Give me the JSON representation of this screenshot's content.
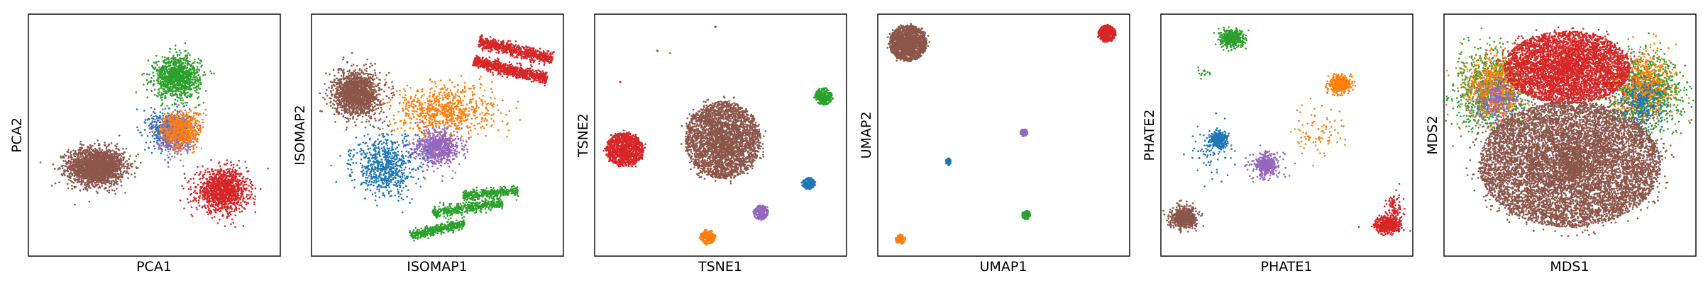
{
  "figure": {
    "background": "#ffffff",
    "palette": {
      "blue": "#1f77b4",
      "orange": "#ff7f0e",
      "green": "#2ca02c",
      "red": "#d62728",
      "purple": "#9467bd",
      "brown": "#8c564b"
    }
  },
  "chart_data": [
    {
      "type": "scatter",
      "title": "",
      "xlabel": "PCA1",
      "ylabel": "PCA2",
      "ticks": false,
      "grid": false,
      "legend": false,
      "xlim": [
        0,
        100
      ],
      "ylim": [
        0,
        100
      ],
      "series": [
        {
          "color": "#8c564b",
          "cx": 27,
          "cy": 37,
          "rx": 11,
          "ry": 7.5,
          "n": 2200,
          "kind": "blob"
        },
        {
          "color": "#d62728",
          "cx": 77,
          "cy": 27,
          "rx": 10,
          "ry": 8.5,
          "n": 1300,
          "kind": "blob"
        },
        {
          "color": "#2ca02c",
          "cx": 59,
          "cy": 74,
          "rx": 9,
          "ry": 8.5,
          "n": 1100,
          "kind": "blob"
        },
        {
          "color": "#1f77b4",
          "cx": 56,
          "cy": 52,
          "rx": 8,
          "ry": 8,
          "n": 500,
          "kind": "blob"
        },
        {
          "color": "#9467bd",
          "cx": 58,
          "cy": 51,
          "rx": 7,
          "ry": 8,
          "n": 500,
          "kind": "blob"
        },
        {
          "color": "#ff7f0e",
          "cx": 61,
          "cy": 52,
          "rx": 8,
          "ry": 8,
          "n": 500,
          "kind": "blob"
        }
      ]
    },
    {
      "type": "scatter",
      "title": "",
      "xlabel": "ISOMAP1",
      "ylabel": "ISOMAP2",
      "ticks": false,
      "grid": false,
      "legend": false,
      "xlim": [
        0,
        100
      ],
      "ylim": [
        0,
        100
      ],
      "series": [
        {
          "color": "#8c564b",
          "cx": 18,
          "cy": 67,
          "rx": 9,
          "ry": 9,
          "n": 1600,
          "kind": "blob"
        },
        {
          "color": "#d62728",
          "cx": 81,
          "cy": 85,
          "rx": 15,
          "ry": 3.5,
          "n": 800,
          "kind": "band",
          "angle": -14
        },
        {
          "color": "#d62728",
          "cx": 79,
          "cy": 77,
          "rx": 15,
          "ry": 3.5,
          "n": 800,
          "kind": "band",
          "angle": -14
        },
        {
          "color": "#ff7f0e",
          "cx": 53,
          "cy": 60,
          "rx": 18,
          "ry": 10,
          "n": 800,
          "kind": "diffuse"
        },
        {
          "color": "#9467bd",
          "cx": 50,
          "cy": 45,
          "rx": 9,
          "ry": 7,
          "n": 700,
          "kind": "blob"
        },
        {
          "color": "#1f77b4",
          "cx": 29,
          "cy": 37,
          "rx": 11,
          "ry": 11,
          "n": 700,
          "kind": "diffuse"
        },
        {
          "color": "#2ca02c",
          "cx": 62,
          "cy": 20,
          "rx": 14,
          "ry": 3.5,
          "n": 450,
          "kind": "band",
          "angle": 9
        },
        {
          "color": "#2ca02c",
          "cx": 50,
          "cy": 11,
          "rx": 11,
          "ry": 3,
          "n": 400,
          "kind": "band",
          "angle": 14
        },
        {
          "color": "#2ca02c",
          "cx": 71,
          "cy": 26,
          "rx": 11,
          "ry": 3,
          "n": 350,
          "kind": "band",
          "angle": 6
        }
      ]
    },
    {
      "type": "scatter",
      "title": "",
      "xlabel": "TSNE1",
      "ylabel": "TSNE2",
      "ticks": false,
      "grid": false,
      "legend": false,
      "xlim": [
        0,
        100
      ],
      "ylim": [
        0,
        100
      ],
      "series": [
        {
          "color": "#8c564b",
          "cx": 51,
          "cy": 48,
          "rx": 15,
          "ry": 16,
          "n": 3200,
          "kind": "disk"
        },
        {
          "color": "#d62728",
          "cx": 12,
          "cy": 44,
          "rx": 7.5,
          "ry": 7,
          "n": 1100,
          "kind": "disk"
        },
        {
          "color": "#2ca02c",
          "cx": 91,
          "cy": 66,
          "rx": 3.5,
          "ry": 3.5,
          "n": 300,
          "kind": "disk"
        },
        {
          "color": "#1f77b4",
          "cx": 85,
          "cy": 30,
          "rx": 2.5,
          "ry": 2.5,
          "n": 200,
          "kind": "disk"
        },
        {
          "color": "#9467bd",
          "cx": 66,
          "cy": 18,
          "rx": 3,
          "ry": 3,
          "n": 220,
          "kind": "disk"
        },
        {
          "color": "#ff7f0e",
          "cx": 45,
          "cy": 8,
          "rx": 3,
          "ry": 3,
          "n": 220,
          "kind": "disk"
        },
        {
          "color": "#8c564b",
          "cx": 48,
          "cy": 95,
          "rx": 0.4,
          "ry": 0.4,
          "n": 3,
          "kind": "disk"
        },
        {
          "color": "#ff7f0e",
          "cx": 30,
          "cy": 84,
          "rx": 0.3,
          "ry": 0.3,
          "n": 2,
          "kind": "disk"
        },
        {
          "color": "#8c564b",
          "cx": 25,
          "cy": 85,
          "rx": 0.3,
          "ry": 0.3,
          "n": 2,
          "kind": "disk"
        },
        {
          "color": "#d62728",
          "cx": 10,
          "cy": 72,
          "rx": 0.3,
          "ry": 0.3,
          "n": 2,
          "kind": "disk"
        }
      ]
    },
    {
      "type": "scatter",
      "title": "",
      "xlabel": "UMAP1",
      "ylabel": "UMAP2",
      "ticks": false,
      "grid": false,
      "legend": false,
      "xlim": [
        0,
        100
      ],
      "ylim": [
        0,
        100
      ],
      "series": [
        {
          "color": "#8c564b",
          "cx": 12,
          "cy": 88,
          "rx": 7.5,
          "ry": 7.5,
          "n": 1600,
          "kind": "disk"
        },
        {
          "color": "#d62728",
          "cx": 91,
          "cy": 92,
          "rx": 3.5,
          "ry": 3.5,
          "n": 500,
          "kind": "disk"
        },
        {
          "color": "#9467bd",
          "cx": 58,
          "cy": 51,
          "rx": 1.5,
          "ry": 1.5,
          "n": 80,
          "kind": "disk"
        },
        {
          "color": "#1f77b4",
          "cx": 28,
          "cy": 39,
          "rx": 1,
          "ry": 1.5,
          "n": 60,
          "kind": "disk"
        },
        {
          "color": "#2ca02c",
          "cx": 59,
          "cy": 17,
          "rx": 1.8,
          "ry": 1.8,
          "n": 120,
          "kind": "disk"
        },
        {
          "color": "#ff7f0e",
          "cx": 9,
          "cy": 7,
          "rx": 2,
          "ry": 2,
          "n": 120,
          "kind": "disk"
        }
      ]
    },
    {
      "type": "scatter",
      "title": "",
      "xlabel": "PHATE1",
      "ylabel": "PHATE2",
      "ticks": false,
      "grid": false,
      "legend": false,
      "xlim": [
        0,
        100
      ],
      "ylim": [
        0,
        100
      ],
      "series": [
        {
          "color": "#2ca02c",
          "cx": 28,
          "cy": 90,
          "rx": 4.5,
          "ry": 3.5,
          "n": 450,
          "kind": "blob"
        },
        {
          "color": "#2ca02c",
          "cx": 17,
          "cy": 76,
          "rx": 3,
          "ry": 3,
          "n": 15,
          "kind": "diffuse"
        },
        {
          "color": "#ff7f0e",
          "cx": 71,
          "cy": 71,
          "rx": 4,
          "ry": 3.5,
          "n": 450,
          "kind": "blob"
        },
        {
          "color": "#ff7f0e",
          "cx": 62,
          "cy": 52,
          "rx": 9,
          "ry": 10,
          "n": 90,
          "kind": "diffuse"
        },
        {
          "color": "#1f77b4",
          "cx": 23,
          "cy": 48,
          "rx": 3.5,
          "ry": 3.5,
          "n": 300,
          "kind": "blob"
        },
        {
          "color": "#1f77b4",
          "cx": 21,
          "cy": 44,
          "rx": 8,
          "ry": 10,
          "n": 90,
          "kind": "diffuse"
        },
        {
          "color": "#9467bd",
          "cx": 42,
          "cy": 38,
          "rx": 4,
          "ry": 4,
          "n": 350,
          "kind": "blob"
        },
        {
          "color": "#9467bd",
          "cx": 42,
          "cy": 37,
          "rx": 8,
          "ry": 7,
          "n": 90,
          "kind": "diffuse"
        },
        {
          "color": "#8c564b",
          "cx": 9,
          "cy": 16,
          "rx": 5,
          "ry": 4.5,
          "n": 600,
          "kind": "blob"
        },
        {
          "color": "#d62728",
          "cx": 90,
          "cy": 13,
          "rx": 5,
          "ry": 3.5,
          "n": 550,
          "kind": "blob"
        },
        {
          "color": "#d62728",
          "cx": 93,
          "cy": 20,
          "rx": 3,
          "ry": 6,
          "n": 90,
          "kind": "diffuse"
        }
      ]
    },
    {
      "type": "scatter",
      "title": "",
      "xlabel": "MDS1",
      "ylabel": "MDS2",
      "ticks": false,
      "grid": false,
      "legend": false,
      "xlim": [
        0,
        100
      ],
      "ylim": [
        0,
        100
      ],
      "series": [
        {
          "color": "#2ca02c",
          "cx": 19,
          "cy": 68,
          "rx": 13,
          "ry": 14,
          "n": 1000,
          "kind": "diffuse"
        },
        {
          "color": "#2ca02c",
          "cx": 80,
          "cy": 68,
          "rx": 13,
          "ry": 14,
          "n": 1000,
          "kind": "diffuse"
        },
        {
          "color": "#ff7f0e",
          "cx": 20,
          "cy": 70,
          "rx": 11,
          "ry": 13,
          "n": 700,
          "kind": "diffuse"
        },
        {
          "color": "#ff7f0e",
          "cx": 79,
          "cy": 70,
          "rx": 11,
          "ry": 13,
          "n": 700,
          "kind": "diffuse"
        },
        {
          "color": "#9467bd",
          "cx": 22,
          "cy": 64,
          "rx": 9,
          "ry": 10,
          "n": 300,
          "kind": "diffuse"
        },
        {
          "color": "#1f77b4",
          "cx": 78,
          "cy": 64,
          "rx": 9,
          "ry": 10,
          "n": 300,
          "kind": "diffuse"
        },
        {
          "color": "#d62728",
          "cx": 49,
          "cy": 78,
          "rx": 25,
          "ry": 15,
          "n": 4500,
          "kind": "disk"
        },
        {
          "color": "#8c564b",
          "cx": 50,
          "cy": 38,
          "rx": 36,
          "ry": 26,
          "n": 9000,
          "kind": "disk"
        }
      ]
    }
  ]
}
